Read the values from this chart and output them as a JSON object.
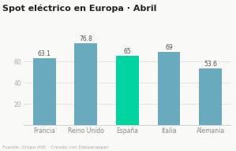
{
  "title": "Spot eléctrico en Europa · Abril",
  "categories": [
    "Francia",
    "Reino Unido",
    "España",
    "Italia",
    "Alemania"
  ],
  "values": [
    63.1,
    76.8,
    65,
    69,
    53.6
  ],
  "bar_colors": [
    "#6aaabe",
    "#6aaabe",
    "#00d4a0",
    "#6aaabe",
    "#6aaabe"
  ],
  "ylim": [
    0,
    85
  ],
  "yticks": [
    20,
    40,
    60
  ],
  "background_color": "#f9f9f7",
  "source": "Fuente: Grupo ASE · Creado con Datawrapper",
  "title_fontsize": 8.0,
  "label_fontsize": 5.5,
  "tick_fontsize": 5.5,
  "source_fontsize": 4.2,
  "bar_width": 0.55
}
